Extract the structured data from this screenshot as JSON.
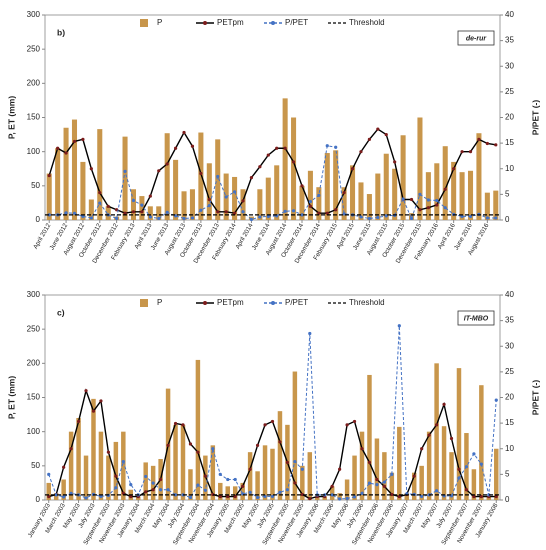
{
  "chart_data": [
    {
      "type": "combo",
      "panel_label": "b)",
      "site_label": "de-rur",
      "y_label": "P, ET (mm)",
      "y2_label": "P/PET (-)",
      "ylim": [
        0,
        300
      ],
      "yticks": [
        0,
        50,
        100,
        150,
        200,
        250,
        300
      ],
      "y2lim": [
        0,
        40
      ],
      "y2ticks": [
        0,
        5,
        10,
        15,
        20,
        25,
        30,
        35,
        40
      ],
      "categories": [
        "April 2012",
        null,
        "June 2012",
        null,
        "August 2012",
        null,
        "October 2012",
        null,
        "December 2012",
        null,
        "February 2013",
        null,
        "April 2013",
        null,
        "June 2013",
        null,
        "August 2013",
        null,
        "October 2013",
        null,
        "December 2013",
        null,
        "February 2014",
        null,
        "April 2014",
        null,
        "June 2014",
        null,
        "August 2014",
        null,
        "October 2014",
        null,
        "December 2014",
        null,
        "February 2015",
        null,
        "April 2015",
        null,
        "June 2015",
        null,
        "August 2015",
        null,
        "October 2015",
        null,
        "December 2015",
        null,
        "February 2016",
        null,
        "April 2016",
        null,
        "June 2016",
        null,
        "August 2016",
        null
      ],
      "series": [
        {
          "name": "P",
          "type": "bar",
          "color": "#c8964b",
          "values": [
            68,
            105,
            135,
            147,
            85,
            30,
            133,
            20,
            5,
            122,
            45,
            35,
            20,
            20,
            127,
            88,
            42,
            45,
            128,
            83,
            118,
            68,
            63,
            45,
            5,
            45,
            62,
            80,
            178,
            150,
            50,
            72,
            48,
            98,
            102,
            48,
            80,
            55,
            38,
            68,
            97,
            75,
            124,
            10,
            150,
            70,
            83,
            108,
            85,
            70,
            72,
            127,
            40,
            43
          ]
        },
        {
          "name": "PETpm",
          "type": "line",
          "color": "#000000",
          "marker_color": "#7b1c1c",
          "values": [
            65,
            105,
            98,
            115,
            118,
            75,
            40,
            20,
            15,
            10,
            12,
            12,
            35,
            72,
            82,
            105,
            128,
            108,
            68,
            30,
            12,
            12,
            10,
            28,
            62,
            78,
            95,
            105,
            105,
            85,
            50,
            20,
            10,
            10,
            15,
            40,
            75,
            100,
            118,
            133,
            125,
            85,
            30,
            30,
            15,
            18,
            22,
            45,
            75,
            100,
            100,
            118,
            112,
            110
          ]
        },
        {
          "name": "P/PET",
          "type": "line",
          "dashed": true,
          "axis": "y2",
          "color": "#4472c4",
          "marker_color": "#4472c4",
          "values": [
            1,
            1,
            1.4,
            1.3,
            0.7,
            0.4,
            3.3,
            1,
            0.3,
            9.5,
            3.8,
            2.9,
            0.6,
            0.3,
            1.5,
            0.8,
            0.3,
            0.4,
            1.9,
            2.8,
            8.5,
            4.5,
            5.5,
            1.6,
            0.1,
            0.6,
            0.7,
            0.8,
            1.7,
            1.8,
            1,
            3.6,
            4.8,
            14.5,
            14.2,
            1.2,
            1,
            0.6,
            0.3,
            0.5,
            0.8,
            0.9,
            4.1,
            0.3,
            5,
            3.9,
            3.8,
            2.4,
            1.1,
            0.7,
            0.7,
            1.1,
            0.4,
            0.4
          ]
        },
        {
          "name": "Threshold",
          "type": "hline",
          "dashed": true,
          "axis": "y2",
          "color": "#000000",
          "value": 1
        }
      ]
    },
    {
      "type": "combo",
      "panel_label": "c)",
      "site_label": "IT-MBO",
      "y_label": "P, ET (mm)",
      "y2_label": "P/PET (-)",
      "ylim": [
        0,
        300
      ],
      "yticks": [
        0,
        50,
        100,
        150,
        200,
        250,
        300
      ],
      "y2lim": [
        0,
        40
      ],
      "y2ticks": [
        0,
        5,
        10,
        15,
        20,
        25,
        30,
        35,
        40
      ],
      "categories": [
        "January 2003",
        null,
        "March 2003",
        null,
        "May 2003",
        null,
        "July 2003",
        null,
        "September 2003",
        null,
        "November 2003",
        null,
        "January 2004",
        null,
        "March 2004",
        null,
        "May 2004",
        null,
        "July 2004",
        null,
        "September 2004",
        null,
        "November 2004",
        null,
        "January 2005",
        null,
        "March 2005",
        null,
        "May 2005",
        null,
        "July 2005",
        null,
        "September 2005",
        null,
        "November 2005",
        null,
        "January 2006",
        null,
        "March 2006",
        null,
        "May 2006",
        null,
        "July 2006",
        null,
        "September 2006",
        null,
        "November 2006",
        null,
        "January 2007",
        null,
        "March 2007",
        null,
        "May 2007",
        null,
        "July 2007",
        null,
        "September 2007",
        null,
        "November 2007",
        null,
        "January 2008"
      ],
      "series": [
        {
          "name": "P",
          "type": "bar",
          "color": "#c8964b",
          "values": [
            25,
            10,
            30,
            100,
            120,
            65,
            148,
            100,
            65,
            85,
            100,
            15,
            5,
            55,
            50,
            60,
            163,
            110,
            110,
            45,
            205,
            65,
            80,
            25,
            20,
            20,
            25,
            70,
            42,
            80,
            75,
            130,
            110,
            188,
            50,
            70,
            5,
            5,
            20,
            10,
            30,
            65,
            100,
            183,
            90,
            70,
            40,
            107,
            10,
            40,
            50,
            100,
            200,
            108,
            70,
            193,
            98,
            45,
            168,
            5,
            75
          ]
        },
        {
          "name": "PETpm",
          "type": "line",
          "color": "#000000",
          "marker_color": "#7b1c1c",
          "values": [
            5,
            8,
            48,
            75,
            115,
            160,
            130,
            145,
            70,
            35,
            10,
            5,
            5,
            12,
            15,
            30,
            80,
            112,
            110,
            82,
            70,
            35,
            8,
            5,
            5,
            5,
            20,
            45,
            80,
            110,
            115,
            85,
            55,
            25,
            8,
            2,
            5,
            5,
            20,
            45,
            110,
            115,
            75,
            55,
            30,
            20,
            8,
            5,
            8,
            35,
            75,
            95,
            110,
            140,
            90,
            45,
            15,
            5,
            5,
            5,
            5
          ]
        },
        {
          "name": "P/PET",
          "type": "line",
          "dashed": true,
          "axis": "y2",
          "color": "#4472c4",
          "marker_color": "#4472c4",
          "values": [
            5,
            1,
            0.6,
            1.3,
            1,
            0.4,
            1.1,
            0.7,
            0.9,
            2.4,
            7.5,
            3,
            1,
            4.6,
            3.3,
            2,
            2,
            1,
            1,
            0.5,
            2.9,
            1.9,
            10,
            5,
            4,
            4,
            1.2,
            1.5,
            0.5,
            0.7,
            0.7,
            1.5,
            2,
            7.5,
            6,
            32.5,
            1,
            1,
            1,
            0.2,
            0.3,
            0.6,
            1.3,
            3.3,
            3,
            3.5,
            5,
            34,
            1.2,
            1.1,
            0.7,
            1,
            1.8,
            0.8,
            0.8,
            4.3,
            6.5,
            9,
            7,
            1,
            19.5
          ]
        },
        {
          "name": "Threshold",
          "type": "hline",
          "dashed": true,
          "axis": "y2",
          "color": "#000000",
          "value": 1
        }
      ]
    }
  ]
}
